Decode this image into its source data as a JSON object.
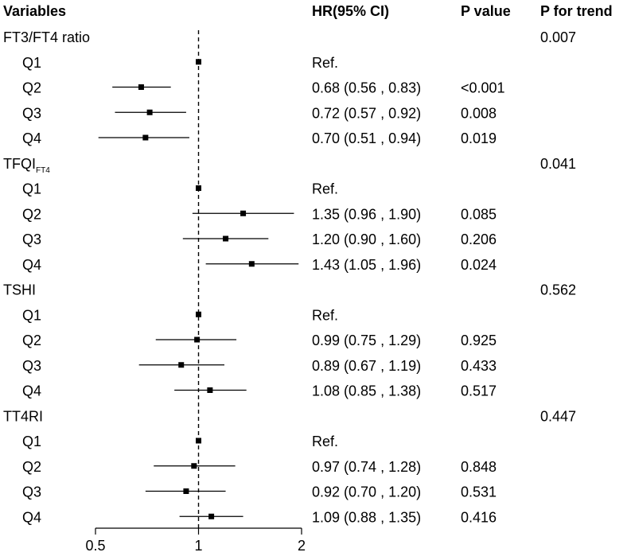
{
  "chart_data": {
    "type": "forest",
    "headers": {
      "variables": "Variables",
      "hr": "HR(95% CI)",
      "p": "P value",
      "trend": "P for trend"
    },
    "x_ticks": [
      "0.5",
      "1",
      "2"
    ],
    "xlim": [
      0.5,
      2
    ],
    "x_scale": "log2",
    "reference_line": 1,
    "groups": [
      {
        "label": "FT3/FT4 ratio",
        "label_sub": "",
        "p_trend": "0.007",
        "rows": [
          {
            "label": "Q1",
            "hr": 1.0,
            "lo": 1.0,
            "hi": 1.0,
            "hr_text": "Ref.",
            "p": ""
          },
          {
            "label": "Q2",
            "hr": 0.68,
            "lo": 0.56,
            "hi": 0.83,
            "hr_text": "0.68 (0.56 , 0.83)",
            "p": "<0.001"
          },
          {
            "label": "Q3",
            "hr": 0.72,
            "lo": 0.57,
            "hi": 0.92,
            "hr_text": "0.72 (0.57 , 0.92)",
            "p": "0.008"
          },
          {
            "label": "Q4",
            "hr": 0.7,
            "lo": 0.51,
            "hi": 0.94,
            "hr_text": "0.70 (0.51 , 0.94)",
            "p": "0.019"
          }
        ]
      },
      {
        "label": "TFQI",
        "label_sub": "FT4",
        "p_trend": "0.041",
        "rows": [
          {
            "label": "Q1",
            "hr": 1.0,
            "lo": 1.0,
            "hi": 1.0,
            "hr_text": "Ref.",
            "p": ""
          },
          {
            "label": "Q2",
            "hr": 1.35,
            "lo": 0.96,
            "hi": 1.9,
            "hr_text": "1.35 (0.96 , 1.90)",
            "p": "0.085"
          },
          {
            "label": "Q3",
            "hr": 1.2,
            "lo": 0.9,
            "hi": 1.6,
            "hr_text": "1.20 (0.90 , 1.60)",
            "p": "0.206"
          },
          {
            "label": "Q4",
            "hr": 1.43,
            "lo": 1.05,
            "hi": 1.96,
            "hr_text": "1.43 (1.05 , 1.96)",
            "p": "0.024"
          }
        ]
      },
      {
        "label": "TSHI",
        "label_sub": "",
        "p_trend": "0.562",
        "rows": [
          {
            "label": "Q1",
            "hr": 1.0,
            "lo": 1.0,
            "hi": 1.0,
            "hr_text": "Ref.",
            "p": ""
          },
          {
            "label": "Q2",
            "hr": 0.99,
            "lo": 0.75,
            "hi": 1.29,
            "hr_text": "0.99 (0.75 , 1.29)",
            "p": "0.925"
          },
          {
            "label": "Q3",
            "hr": 0.89,
            "lo": 0.67,
            "hi": 1.19,
            "hr_text": "0.89 (0.67 , 1.19)",
            "p": "0.433"
          },
          {
            "label": "Q4",
            "hr": 1.08,
            "lo": 0.85,
            "hi": 1.38,
            "hr_text": "1.08 (0.85 , 1.38)",
            "p": "0.517"
          }
        ]
      },
      {
        "label": "TT4RI",
        "label_sub": "",
        "p_trend": "0.447",
        "rows": [
          {
            "label": "Q1",
            "hr": 1.0,
            "lo": 1.0,
            "hi": 1.0,
            "hr_text": "Ref.",
            "p": ""
          },
          {
            "label": "Q2",
            "hr": 0.97,
            "lo": 0.74,
            "hi": 1.28,
            "hr_text": "0.97 (0.74 , 1.28)",
            "p": "0.848"
          },
          {
            "label": "Q3",
            "hr": 0.92,
            "lo": 0.7,
            "hi": 1.2,
            "hr_text": "0.92 (0.70 , 1.20)",
            "p": "0.531"
          },
          {
            "label": "Q4",
            "hr": 1.09,
            "lo": 0.88,
            "hi": 1.35,
            "hr_text": "1.09 (0.88 , 1.35)",
            "p": "0.416"
          }
        ]
      }
    ]
  }
}
